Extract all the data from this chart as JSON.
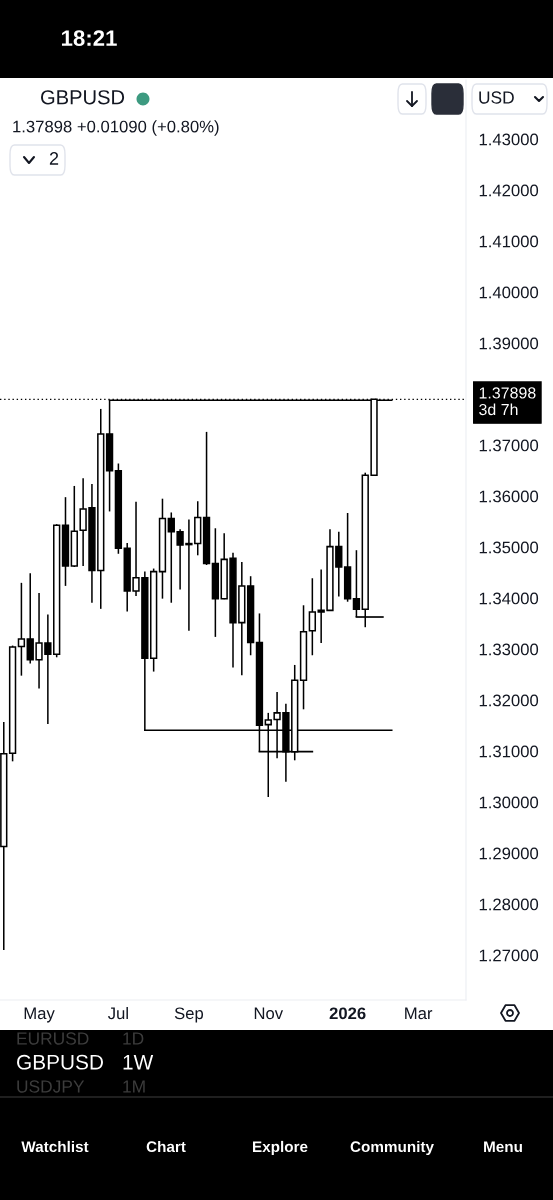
{
  "chart_data": {
    "type": "candlestick",
    "title": "GBPUSD",
    "subtitle": "1.37898 +0.01090 (+0.80%)",
    "x": [
      "2025-04-07",
      "2025-04-14",
      "2025-04-21",
      "2025-04-28",
      "2025-05-05",
      "2025-05-12",
      "2025-05-19",
      "2025-05-26",
      "2025-06-02",
      "2025-06-09",
      "2025-06-16",
      "2025-06-23",
      "2025-06-30",
      "2025-07-07",
      "2025-07-14",
      "2025-07-21",
      "2025-07-28",
      "2025-08-04",
      "2025-08-11",
      "2025-08-18",
      "2025-08-25",
      "2025-09-01",
      "2025-09-08",
      "2025-09-15",
      "2025-09-22",
      "2025-09-29",
      "2025-10-06",
      "2025-10-13",
      "2025-10-20",
      "2025-10-27",
      "2025-11-03",
      "2025-11-10",
      "2025-11-17",
      "2025-11-24",
      "2025-12-01",
      "2025-12-08",
      "2025-12-15",
      "2025-12-22",
      "2025-12-29",
      "2026-01-05",
      "2026-01-12",
      "2026-01-19",
      "2026-01-26"
    ],
    "ohlc": [
      [
        1.2913,
        1.3157,
        1.271,
        1.3095
      ],
      [
        1.3096,
        1.3307,
        1.308,
        1.3304
      ],
      [
        1.3305,
        1.343,
        1.3248,
        1.332
      ],
      [
        1.332,
        1.3449,
        1.3272,
        1.3279
      ],
      [
        1.3279,
        1.341,
        1.3223,
        1.3312
      ],
      [
        1.3312,
        1.3368,
        1.3153,
        1.329
      ],
      [
        1.329,
        1.3545,
        1.3284,
        1.3543
      ],
      [
        1.3543,
        1.3598,
        1.3424,
        1.3463
      ],
      [
        1.3463,
        1.362,
        1.3461,
        1.3531
      ],
      [
        1.3533,
        1.3635,
        1.3463,
        1.3575
      ],
      [
        1.3577,
        1.3624,
        1.3391,
        1.3454
      ],
      [
        1.3454,
        1.3771,
        1.3379,
        1.3722
      ],
      [
        1.3722,
        1.3788,
        1.357,
        1.365
      ],
      [
        1.365,
        1.3664,
        1.3487,
        1.3498
      ],
      [
        1.3498,
        1.3508,
        1.3374,
        1.3414
      ],
      [
        1.3414,
        1.3589,
        1.3404,
        1.344
      ],
      [
        1.344,
        1.3452,
        1.3141,
        1.3282
      ],
      [
        1.3282,
        1.3458,
        1.3256,
        1.3452
      ],
      [
        1.3452,
        1.3595,
        1.3399,
        1.3556
      ],
      [
        1.3556,
        1.3568,
        1.3391,
        1.353
      ],
      [
        1.353,
        1.3535,
        1.3417,
        1.3504
      ],
      [
        1.3505,
        1.3554,
        1.3336,
        1.3507
      ],
      [
        1.3507,
        1.359,
        1.3484,
        1.3558
      ],
      [
        1.3558,
        1.3726,
        1.3465,
        1.3468
      ],
      [
        1.3468,
        1.3537,
        1.3324,
        1.3399
      ],
      [
        1.3399,
        1.3527,
        1.3398,
        1.3476
      ],
      [
        1.3478,
        1.3489,
        1.3264,
        1.3352
      ],
      [
        1.3352,
        1.3471,
        1.3249,
        1.3424
      ],
      [
        1.3424,
        1.3443,
        1.3288,
        1.3313
      ],
      [
        1.3313,
        1.337,
        1.3099,
        1.3151
      ],
      [
        1.3152,
        1.3175,
        1.301,
        1.3161
      ],
      [
        1.3162,
        1.3216,
        1.3086,
        1.3175
      ],
      [
        1.3175,
        1.3193,
        1.304,
        1.3099
      ],
      [
        1.3099,
        1.3269,
        1.3082,
        1.3239
      ],
      [
        1.3239,
        1.3386,
        1.3182,
        1.3334
      ],
      [
        1.3336,
        1.3439,
        1.3288,
        1.3373
      ],
      [
        1.3373,
        1.3456,
        1.3312,
        1.3376
      ],
      [
        1.3376,
        1.3535,
        1.3375,
        1.3501
      ],
      [
        1.3501,
        1.353,
        1.3403,
        1.3461
      ],
      [
        1.3461,
        1.3567,
        1.3393,
        1.3399
      ],
      [
        1.3399,
        1.3494,
        1.3363,
        1.3378
      ],
      [
        1.3378,
        1.3646,
        1.3343,
        1.3641
      ],
      [
        1.3641,
        1.37898,
        1.3641,
        1.37898
      ]
    ],
    "color": "#000000",
    "colors": [
      "#ffffff",
      "#ffffff",
      "#ffffff",
      "#000000",
      "#ffffff",
      "#000000",
      "#ffffff",
      "#000000",
      "#ffffff",
      "#ffffff",
      "#000000",
      "#ffffff",
      "#000000",
      "#000000",
      "#000000",
      "#ffffff",
      "#000000",
      "#ffffff",
      "#ffffff",
      "#000000",
      "#000000",
      "#ffffff",
      "#ffffff",
      "#000000",
      "#000000",
      "#ffffff",
      "#000000",
      "#ffffff",
      "#000000",
      "#000000",
      "#ffffff",
      "#ffffff",
      "#000000",
      "#ffffff",
      "#ffffff",
      "#ffffff",
      "#ffffff",
      "#ffffff",
      "#000000",
      "#000000",
      "#000000",
      "#ffffff",
      "#ffffff"
    ],
    "series": [
      {
        "type": "line",
        "x": [
          "2025-06-30",
          "2026-02-09"
        ],
        "values": [
          1.3788,
          1.3788
        ],
        "color": "#000000"
      },
      {
        "type": "line",
        "x": [
          "2025-07-28",
          "2026-02-09"
        ],
        "values": [
          1.3141,
          1.3141
        ],
        "color": "#000000"
      },
      {
        "type": "line",
        "x": [
          "2025-10-27",
          "2025-12-08"
        ],
        "values": [
          1.3099,
          1.3099
        ],
        "color": "#000000"
      },
      {
        "type": "line",
        "x": [
          "2026-01-12",
          "2026-02-02"
        ],
        "values": [
          1.3363,
          1.3363
        ],
        "color": "#000000"
      }
    ],
    "xlim": [
      "2025-04-04",
      "2026-04-09"
    ],
    "xticks": [
      {
        "value": "2025-05-05",
        "label": "May"
      },
      {
        "value": "2025-07-07",
        "label": "Jul"
      },
      {
        "value": "2025-09-01",
        "label": "Sep"
      },
      {
        "value": "2025-11-03",
        "label": "Nov"
      },
      {
        "value": "2026-01-05",
        "label": "2026"
      },
      {
        "value": "2026-03-02",
        "label": "Mar"
      }
    ],
    "ylim": [
      1.2612,
      1.4416
    ],
    "yticks": [
      {
        "value": 1.27,
        "label": "1.27000"
      },
      {
        "value": 1.28,
        "label": "1.28000"
      },
      {
        "value": 1.29,
        "label": "1.29000"
      },
      {
        "value": 1.3,
        "label": "1.30000"
      },
      {
        "value": 1.31,
        "label": "1.31000"
      },
      {
        "value": 1.32,
        "label": "1.32000"
      },
      {
        "value": 1.33,
        "label": "1.33000"
      },
      {
        "value": 1.34,
        "label": "1.34000"
      },
      {
        "value": 1.35,
        "label": "1.35000"
      },
      {
        "value": 1.36,
        "label": "1.36000"
      },
      {
        "value": 1.37,
        "label": "1.37000"
      },
      {
        "value": 1.39,
        "label": "1.39000"
      },
      {
        "value": 1.4,
        "label": "1.40000"
      },
      {
        "value": 1.41,
        "label": "1.41000"
      },
      {
        "value": 1.42,
        "label": "1.42000"
      },
      {
        "value": 1.43,
        "label": "1.43000"
      }
    ],
    "ref_lines": [
      {
        "axis": "y",
        "value": 1.37898,
        "label": "1.37898\n3d 7h",
        "color": "#000000",
        "line_style": "dotted"
      }
    ],
    "annotations": [
      "18:21",
      "2",
      "USD",
      "EURUSD",
      "1D",
      "GBPUSD",
      "1W",
      "USDJPY",
      "1M",
      "Watchlist",
      "Chart",
      "Explore",
      "Community",
      "Menu"
    ]
  }
}
